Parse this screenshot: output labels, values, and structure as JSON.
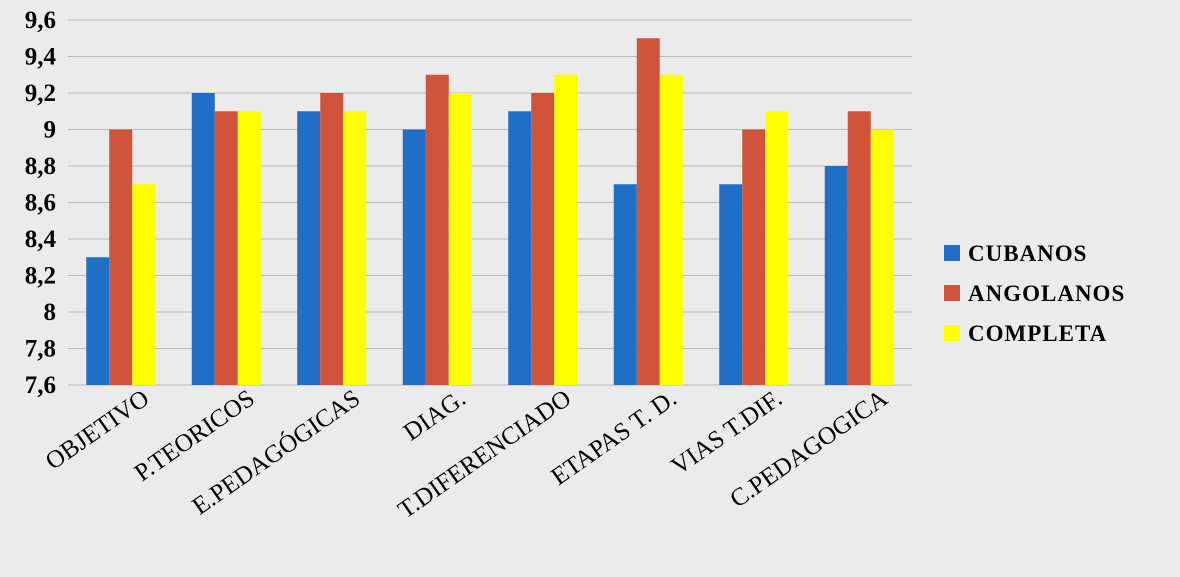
{
  "chart_data": {
    "type": "bar",
    "title": "",
    "xlabel": "",
    "ylabel": "",
    "ylim": [
      7.6,
      9.6
    ],
    "yticks": [
      "7,6",
      "7,8",
      "8",
      "8,2",
      "8,4",
      "8,6",
      "8,8",
      "9",
      "9,2",
      "9,4",
      "9,6"
    ],
    "categories": [
      "OBJETIVO",
      "P.TEORICOS",
      "E.PEDAGÓGICAS",
      "DIAG.",
      "T.DIFERENCIADO",
      "ETAPAS T. D.",
      "VIAS T.DIF.",
      "C.PEDAGOGICA"
    ],
    "series": [
      {
        "name": "CUBANOS",
        "color": "#1f6fc6",
        "values": [
          8.3,
          9.2,
          9.1,
          9.0,
          9.1,
          8.7,
          8.7,
          8.8
        ]
      },
      {
        "name": "ANGOLANOS",
        "color": "#d0533b",
        "values": [
          9.0,
          9.1,
          9.2,
          9.3,
          9.2,
          9.5,
          9.0,
          9.1
        ]
      },
      {
        "name": "COMPLETA",
        "color": "#ffff00",
        "values": [
          8.7,
          9.1,
          9.1,
          9.2,
          9.3,
          9.3,
          9.1,
          9.0
        ]
      }
    ],
    "grid": true,
    "legend": "right"
  }
}
